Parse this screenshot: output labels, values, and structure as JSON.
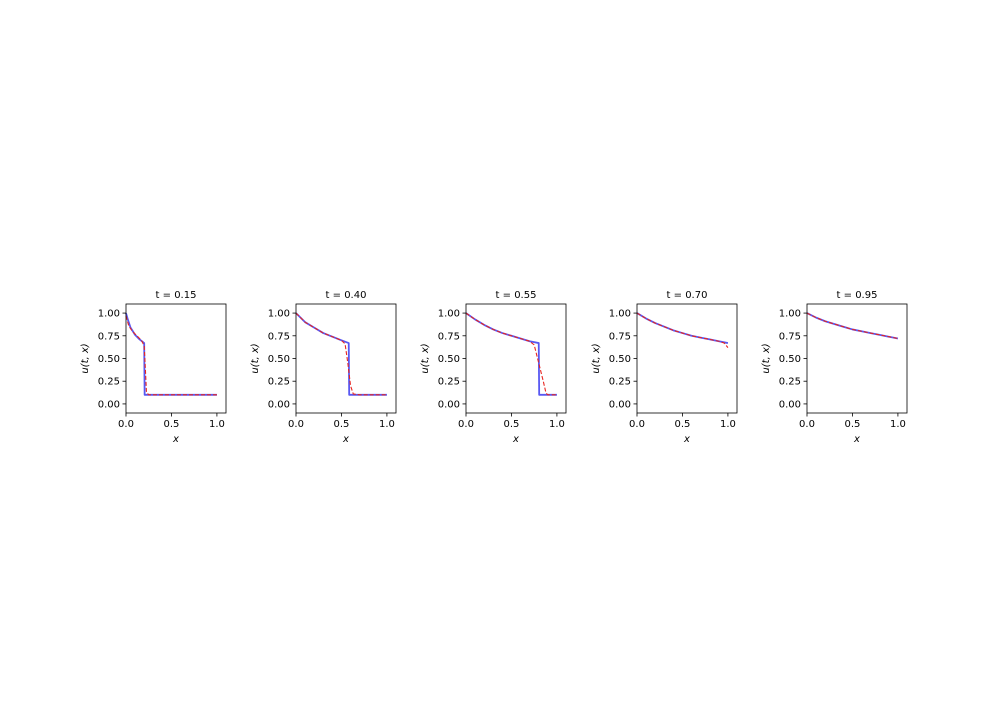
{
  "colors": {
    "exact": "#3b3bf0",
    "prediction": "#e8251f",
    "axes": "#000000",
    "background": "#ffffff"
  },
  "chart_data": [
    {
      "type": "line",
      "title": "t = 0.15",
      "xlabel": "x",
      "ylabel": "u(t, x)",
      "xlim": [
        0.0,
        1.1
      ],
      "ylim": [
        -0.1,
        1.1
      ],
      "xticks": [
        "0.0",
        "0.5",
        "1.0"
      ],
      "yticks": [
        "0.00",
        "0.25",
        "0.50",
        "0.75",
        "1.00"
      ],
      "grid": false,
      "series": [
        {
          "style": "solid",
          "color": "exact",
          "x": [
            0.0,
            0.02,
            0.05,
            0.1,
            0.15,
            0.2,
            0.205,
            0.22,
            0.5,
            1.0
          ],
          "y": [
            1.0,
            0.93,
            0.84,
            0.76,
            0.71,
            0.67,
            0.1,
            0.1,
            0.1,
            0.1
          ]
        },
        {
          "style": "dashed",
          "color": "prediction",
          "x": [
            0.0,
            0.03,
            0.07,
            0.12,
            0.17,
            0.2,
            0.21,
            0.225,
            0.25,
            0.5,
            1.0
          ],
          "y": [
            0.97,
            0.86,
            0.8,
            0.75,
            0.7,
            0.64,
            0.45,
            0.13,
            0.1,
            0.1,
            0.1
          ]
        }
      ]
    },
    {
      "type": "line",
      "title": "t = 0.40",
      "xlabel": "x",
      "ylabel": "u(t, x)",
      "xlim": [
        0.0,
        1.1
      ],
      "ylim": [
        -0.1,
        1.1
      ],
      "xticks": [
        "0.0",
        "0.5",
        "1.0"
      ],
      "yticks": [
        "0.00",
        "0.25",
        "0.50",
        "0.75",
        "1.00"
      ],
      "grid": false,
      "series": [
        {
          "style": "solid",
          "color": "exact",
          "x": [
            0.0,
            0.05,
            0.1,
            0.2,
            0.3,
            0.4,
            0.5,
            0.58,
            0.585,
            0.6,
            0.8,
            1.0
          ],
          "y": [
            1.0,
            0.95,
            0.9,
            0.84,
            0.78,
            0.74,
            0.7,
            0.67,
            0.1,
            0.1,
            0.1,
            0.1
          ]
        },
        {
          "style": "dashed",
          "color": "prediction",
          "x": [
            0.0,
            0.05,
            0.1,
            0.2,
            0.3,
            0.4,
            0.5,
            0.54,
            0.57,
            0.6,
            0.63,
            0.7,
            1.0
          ],
          "y": [
            1.0,
            0.95,
            0.9,
            0.84,
            0.78,
            0.74,
            0.7,
            0.66,
            0.45,
            0.2,
            0.11,
            0.1,
            0.1
          ]
        }
      ]
    },
    {
      "type": "line",
      "title": "t = 0.55",
      "xlabel": "x",
      "ylabel": "u(t, x)",
      "xlim": [
        0.0,
        1.1
      ],
      "ylim": [
        -0.1,
        1.1
      ],
      "xticks": [
        "0.0",
        "0.5",
        "1.0"
      ],
      "yticks": [
        "0.00",
        "0.25",
        "0.50",
        "0.75",
        "1.00"
      ],
      "grid": false,
      "series": [
        {
          "style": "solid",
          "color": "exact",
          "x": [
            0.0,
            0.1,
            0.2,
            0.3,
            0.4,
            0.5,
            0.6,
            0.7,
            0.8,
            0.805,
            0.82,
            0.9,
            1.0
          ],
          "y": [
            1.0,
            0.93,
            0.87,
            0.82,
            0.78,
            0.75,
            0.72,
            0.69,
            0.67,
            0.1,
            0.1,
            0.1,
            0.1
          ]
        },
        {
          "style": "dashed",
          "color": "prediction",
          "x": [
            0.0,
            0.1,
            0.2,
            0.3,
            0.4,
            0.5,
            0.6,
            0.7,
            0.75,
            0.8,
            0.85,
            0.88,
            0.9,
            1.0
          ],
          "y": [
            1.0,
            0.93,
            0.87,
            0.82,
            0.78,
            0.75,
            0.72,
            0.69,
            0.65,
            0.45,
            0.25,
            0.12,
            0.1,
            0.1
          ]
        }
      ]
    },
    {
      "type": "line",
      "title": "t = 0.70",
      "xlabel": "x",
      "ylabel": "u(t, x)",
      "xlim": [
        0.0,
        1.1
      ],
      "ylim": [
        -0.1,
        1.1
      ],
      "xticks": [
        "0.0",
        "0.5",
        "1.0"
      ],
      "yticks": [
        "0.00",
        "0.25",
        "0.50",
        "0.75",
        "1.00"
      ],
      "grid": false,
      "series": [
        {
          "style": "solid",
          "color": "exact",
          "x": [
            0.0,
            0.1,
            0.2,
            0.3,
            0.4,
            0.5,
            0.6,
            0.7,
            0.8,
            0.9,
            1.0
          ],
          "y": [
            1.0,
            0.94,
            0.89,
            0.85,
            0.81,
            0.78,
            0.75,
            0.73,
            0.71,
            0.69,
            0.67
          ]
        },
        {
          "style": "dashed",
          "color": "prediction",
          "x": [
            0.0,
            0.1,
            0.2,
            0.3,
            0.4,
            0.5,
            0.6,
            0.7,
            0.8,
            0.9,
            0.96,
            1.0
          ],
          "y": [
            1.0,
            0.94,
            0.89,
            0.85,
            0.81,
            0.78,
            0.75,
            0.73,
            0.71,
            0.69,
            0.67,
            0.62
          ]
        }
      ]
    },
    {
      "type": "line",
      "title": "t = 0.95",
      "xlabel": "x",
      "ylabel": "u(t, x)",
      "xlim": [
        0.0,
        1.1
      ],
      "ylim": [
        -0.1,
        1.1
      ],
      "xticks": [
        "0.0",
        "0.5",
        "1.0"
      ],
      "yticks": [
        "0.00",
        "0.25",
        "0.50",
        "0.75",
        "1.00"
      ],
      "grid": false,
      "series": [
        {
          "style": "solid",
          "color": "exact",
          "x": [
            0.0,
            0.1,
            0.2,
            0.3,
            0.4,
            0.5,
            0.6,
            0.7,
            0.8,
            0.9,
            1.0
          ],
          "y": [
            1.0,
            0.95,
            0.91,
            0.88,
            0.85,
            0.82,
            0.8,
            0.78,
            0.76,
            0.74,
            0.72
          ]
        },
        {
          "style": "dashed",
          "color": "prediction",
          "x": [
            0.0,
            0.1,
            0.2,
            0.3,
            0.4,
            0.5,
            0.6,
            0.7,
            0.8,
            0.9,
            1.0
          ],
          "y": [
            1.0,
            0.95,
            0.91,
            0.88,
            0.85,
            0.82,
            0.8,
            0.78,
            0.76,
            0.74,
            0.72
          ]
        }
      ]
    }
  ]
}
